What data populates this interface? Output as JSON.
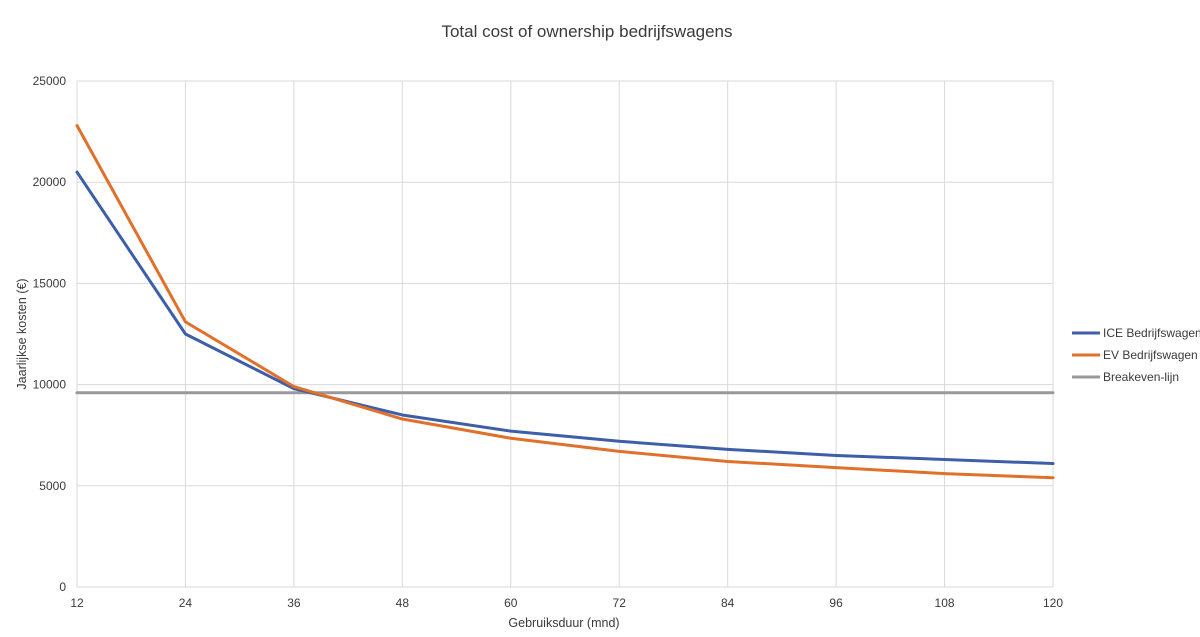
{
  "chart_data": {
    "type": "line",
    "title": "Total cost of ownership bedrijfswagens",
    "xlabel": "Gebruiksduur (mnd)",
    "ylabel": "Jaarlijkse kosten (€)",
    "x": [
      12,
      24,
      36,
      48,
      60,
      72,
      84,
      96,
      108,
      120
    ],
    "ylim": [
      0,
      25000
    ],
    "yticks": [
      0,
      5000,
      10000,
      15000,
      20000,
      25000
    ],
    "grid": true,
    "legend_position": "right",
    "series": [
      {
        "name": "ICE Bedrijfswagen",
        "color": "#3d5ea8",
        "values": [
          20500,
          12500,
          9800,
          8500,
          7700,
          7200,
          6800,
          6500,
          6300,
          6100
        ]
      },
      {
        "name": "EV Bedrijfswagen",
        "color": "#e0702a",
        "values": [
          22800,
          13100,
          9900,
          8300,
          7350,
          6700,
          6200,
          5900,
          5600,
          5400
        ]
      },
      {
        "name": "Breakeven-lijn",
        "color": "#999999",
        "values": [
          9600,
          9600,
          9600,
          9600,
          9600,
          9600,
          9600,
          9600,
          9600,
          9600
        ]
      }
    ]
  }
}
